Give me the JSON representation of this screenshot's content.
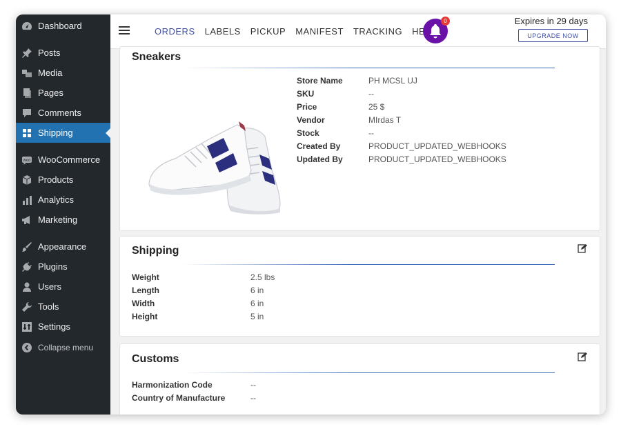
{
  "sidebar": {
    "items": [
      {
        "label": "Dashboard",
        "icon": "dashboard-icon"
      },
      {
        "label": "Posts",
        "icon": "pin-icon"
      },
      {
        "label": "Media",
        "icon": "media-icon"
      },
      {
        "label": "Pages",
        "icon": "pages-icon"
      },
      {
        "label": "Comments",
        "icon": "comments-icon"
      },
      {
        "label": "Shipping",
        "icon": "grid-icon",
        "active": true
      },
      {
        "label": "WooCommerce",
        "icon": "woocommerce-icon"
      },
      {
        "label": "Products",
        "icon": "box-icon"
      },
      {
        "label": "Analytics",
        "icon": "bar-chart-icon"
      },
      {
        "label": "Marketing",
        "icon": "megaphone-icon"
      },
      {
        "label": "Appearance",
        "icon": "brush-icon"
      },
      {
        "label": "Plugins",
        "icon": "plug-icon"
      },
      {
        "label": "Users",
        "icon": "user-icon"
      },
      {
        "label": "Tools",
        "icon": "wrench-icon"
      },
      {
        "label": "Settings",
        "icon": "settings-icon"
      }
    ],
    "collapse_label": "Collapse menu"
  },
  "topbar": {
    "nav": [
      "ORDERS",
      "LABELS",
      "PICKUP",
      "MANIFEST",
      "TRACKING",
      "HELP"
    ],
    "active_nav": "ORDERS",
    "notification_count": "0",
    "expires_text": "Expires in 29 days",
    "upgrade_label": "UPGRADE NOW"
  },
  "product": {
    "title": "Sneakers",
    "fields": [
      {
        "label": "Store Name",
        "value": "PH MCSL UJ"
      },
      {
        "label": "SKU",
        "value": "--"
      },
      {
        "label": "Price",
        "value": "25 $"
      },
      {
        "label": "Vendor",
        "value": "MIrdas T"
      },
      {
        "label": "Stock",
        "value": "--"
      },
      {
        "label": "Created By",
        "value": "PRODUCT_UPDATED_WEBHOOKS"
      },
      {
        "label": "Updated By",
        "value": "PRODUCT_UPDATED_WEBHOOKS"
      }
    ]
  },
  "shipping": {
    "title": "Shipping",
    "fields": [
      {
        "label": "Weight",
        "value": "2.5 lbs"
      },
      {
        "label": "Length",
        "value": "6 in"
      },
      {
        "label": "Width",
        "value": "6 in"
      },
      {
        "label": "Height",
        "value": "5 in"
      }
    ]
  },
  "customs": {
    "title": "Customs",
    "fields": [
      {
        "label": "Harmonization Code",
        "value": "--"
      },
      {
        "label": "Country of Manufacture",
        "value": "--"
      }
    ]
  },
  "colors": {
    "sidebar_bg": "#23282d",
    "active_item": "#2271b1",
    "brand_accent": "#3f4ea1",
    "bell_bg": "#6a11a8",
    "badge_bg": "#e53935"
  }
}
